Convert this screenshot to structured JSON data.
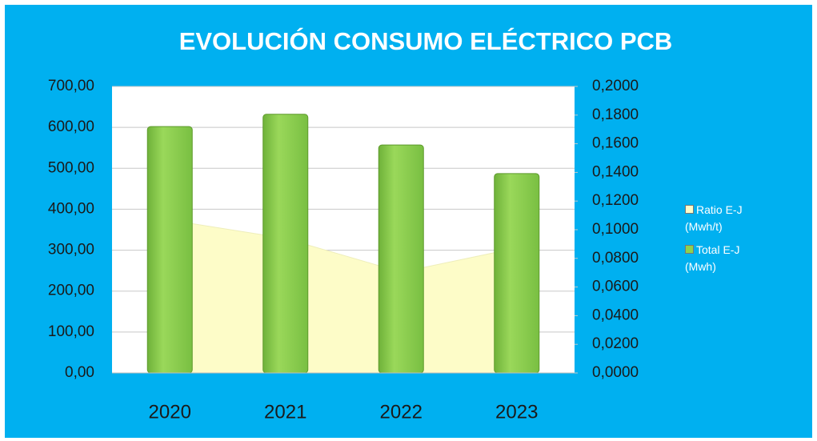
{
  "chart_data": {
    "type": "bar",
    "title": "EVOLUCIÓN CONSUMO ELÉCTRICO PCB",
    "categories": [
      "2020",
      "2021",
      "2022",
      "2023"
    ],
    "series": [
      {
        "name": "Ratio E-J (Mwh/t)",
        "type": "area",
        "axis": "y2",
        "color": "#fdfcc8",
        "values": [
          0.1067,
          0.0939,
          0.0704,
          0.0872
        ]
      },
      {
        "name": "Total E-J (Mwh)",
        "type": "bar",
        "color": "#8fd14f",
        "values": [
          602,
          632,
          557,
          487
        ]
      }
    ],
    "ylim": [
      0,
      700
    ],
    "yticks": [
      {
        "value": 0,
        "label": "0,00"
      },
      {
        "value": 100,
        "label": "100,00"
      },
      {
        "value": 200,
        "label": "200,00"
      },
      {
        "value": 300,
        "label": "300,00"
      },
      {
        "value": 400,
        "label": "400,00"
      },
      {
        "value": 500,
        "label": "500,00"
      },
      {
        "value": 600,
        "label": "600,00"
      },
      {
        "value": 700,
        "label": "700,00"
      }
    ],
    "y2lim": [
      0,
      0.2
    ],
    "y2ticks": [
      {
        "value": 0,
        "label": "0,0000"
      },
      {
        "value": 0.02,
        "label": "0,0200"
      },
      {
        "value": 0.04,
        "label": "0,0400"
      },
      {
        "value": 0.06,
        "label": "0,0600"
      },
      {
        "value": 0.08,
        "label": "0,0800"
      },
      {
        "value": 0.1,
        "label": "0,1000"
      },
      {
        "value": 0.12,
        "label": "0,1200"
      },
      {
        "value": 0.14,
        "label": "0,1400"
      },
      {
        "value": 0.16,
        "label": "0,1600"
      },
      {
        "value": 0.18,
        "label": "0,1800"
      },
      {
        "value": 0.2,
        "label": "0,2000"
      }
    ],
    "grid": true,
    "legend": "right"
  }
}
